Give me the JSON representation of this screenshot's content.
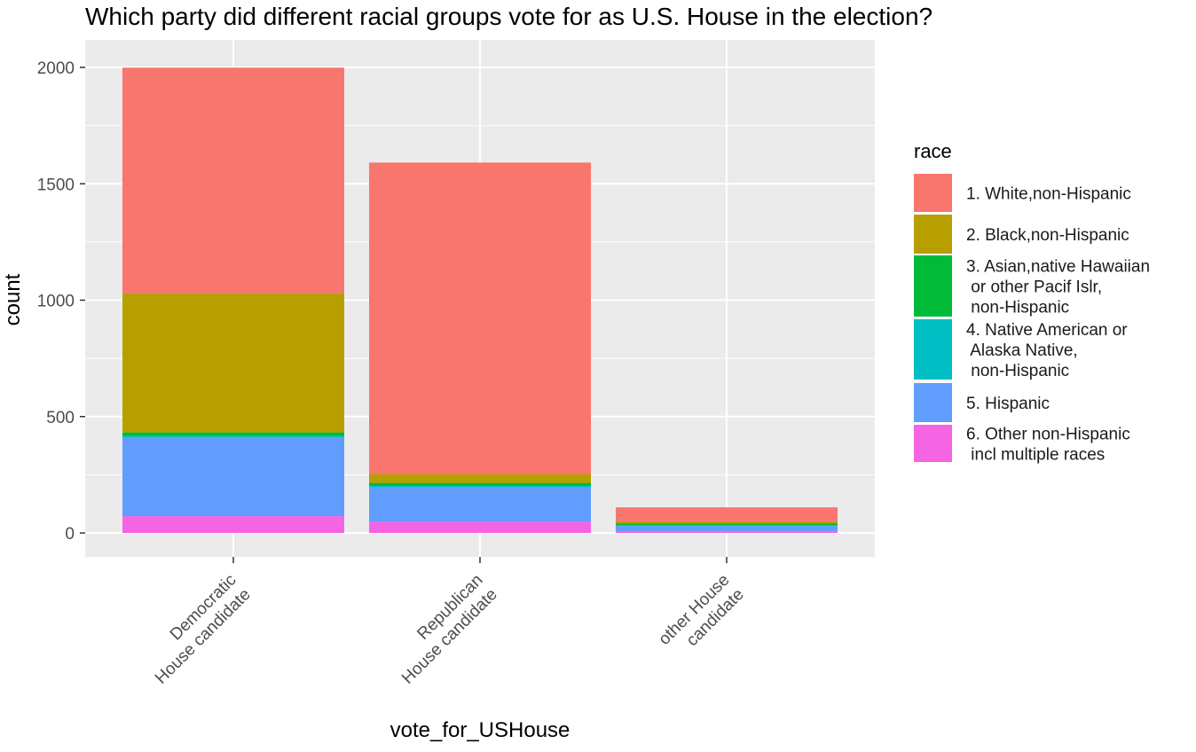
{
  "chart_data": {
    "type": "bar",
    "stacked": true,
    "title": "Which party did different racial groups vote for as U.S. House in the election?",
    "xlabel": "vote_for_USHouse",
    "ylabel": "count",
    "ylim": [
      0,
      2000
    ],
    "yticks": [
      0,
      500,
      1000,
      1500,
      2000
    ],
    "grid": true,
    "legend_position": "right",
    "legend_title": "race",
    "categories": [
      [
        "Democratic",
        "House candidate"
      ],
      [
        "Republican",
        "House candidate"
      ],
      [
        "other House",
        "candidate"
      ]
    ],
    "series": [
      {
        "name": [
          "6. Other non-Hispanic",
          " incl multiple races"
        ],
        "color": "#F564E3",
        "values": [
          72,
          48,
          8
        ]
      },
      {
        "name": [
          "5. Hispanic"
        ],
        "color": "#619CFF",
        "values": [
          338,
          150,
          22
        ]
      },
      {
        "name": [
          "4. Native American or",
          " Alaska Native,",
          " non-Hispanic"
        ],
        "color": "#00BFC4",
        "values": [
          6,
          4,
          4
        ]
      },
      {
        "name": [
          "3. Asian,native Hawaiian",
          " or other Pacif Islr,",
          " non-Hispanic"
        ],
        "color": "#00BA38",
        "values": [
          16,
          13,
          6
        ]
      },
      {
        "name": [
          "2. Black,non-Hispanic"
        ],
        "color": "#B79F00",
        "values": [
          598,
          38,
          10
        ]
      },
      {
        "name": [
          "1. White,non-Hispanic"
        ],
        "color": "#F8766D",
        "values": [
          969,
          1338,
          60
        ]
      }
    ]
  }
}
